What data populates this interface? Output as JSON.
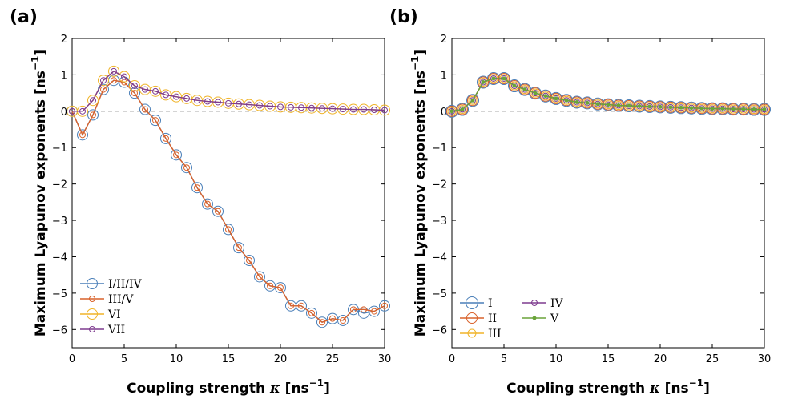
{
  "colors": {
    "blue": "#4a7fb8",
    "orange": "#d9622b",
    "yellow": "#f0b429",
    "purple": "#7e3b8f",
    "green": "#6aa43a",
    "zero_line": "#555555"
  },
  "chart_data": [
    {
      "type": "line",
      "panel_label": "(a)",
      "xlabel": "Coupling strength",
      "xlabel_symbol": "κ",
      "xlabel_unit": "[ns",
      "xlabel_unit_exp": "−1",
      "xlabel_unit_close": "]",
      "ylabel": "Maximum Lyapunov exponents",
      "ylabel_unit": "[ns",
      "ylabel_unit_exp": "−1",
      "ylabel_unit_close": "]",
      "xlim": [
        0,
        30
      ],
      "ylim": [
        -6.5,
        2
      ],
      "xticks": [
        0,
        5,
        10,
        15,
        20,
        25,
        30
      ],
      "yticks": [
        -6,
        -5,
        -4,
        -3,
        -2,
        -1,
        0,
        1,
        2
      ],
      "x": [
        0,
        1,
        2,
        3,
        4,
        5,
        6,
        7,
        8,
        9,
        10,
        11,
        12,
        13,
        14,
        15,
        16,
        17,
        18,
        19,
        20,
        21,
        22,
        23,
        24,
        25,
        26,
        27,
        28,
        29,
        30
      ],
      "series": [
        {
          "name": "I/II/IV",
          "color": "#4a7fb8",
          "marker_size": "large",
          "values": [
            0,
            -0.65,
            -0.1,
            0.6,
            0.85,
            0.8,
            0.5,
            0.05,
            -0.25,
            -0.75,
            -1.2,
            -1.55,
            -2.1,
            -2.55,
            -2.75,
            -3.25,
            -3.75,
            -4.1,
            -4.55,
            -4.8,
            -4.85,
            -5.35,
            -5.35,
            -5.55,
            -5.8,
            -5.7,
            -5.75,
            -5.45,
            -5.55,
            -5.5,
            -5.35
          ]
        },
        {
          "name": "III/V",
          "color": "#d9622b",
          "marker_size": "small",
          "values": [
            0,
            -0.65,
            -0.1,
            0.6,
            0.85,
            0.8,
            0.5,
            0.05,
            -0.25,
            -0.75,
            -1.2,
            -1.55,
            -2.1,
            -2.55,
            -2.75,
            -3.25,
            -3.75,
            -4.1,
            -4.55,
            -4.8,
            -4.85,
            -5.35,
            -5.35,
            -5.55,
            -5.8,
            -5.7,
            -5.75,
            -5.45,
            -5.45,
            -5.5,
            -5.35
          ]
        },
        {
          "name": "VI",
          "color": "#f0b429",
          "marker_size": "large",
          "values": [
            0,
            0,
            0.3,
            0.85,
            1.1,
            0.95,
            0.7,
            0.6,
            0.55,
            0.45,
            0.4,
            0.35,
            0.3,
            0.27,
            0.25,
            0.22,
            0.2,
            0.18,
            0.16,
            0.14,
            0.12,
            0.11,
            0.1,
            0.09,
            0.08,
            0.07,
            0.06,
            0.05,
            0.05,
            0.04,
            0.03
          ]
        },
        {
          "name": "VII",
          "color": "#7e3b8f",
          "marker_size": "small",
          "values": [
            0,
            0,
            0.3,
            0.85,
            1.1,
            0.95,
            0.7,
            0.6,
            0.55,
            0.45,
            0.4,
            0.35,
            0.3,
            0.27,
            0.25,
            0.22,
            0.2,
            0.18,
            0.16,
            0.14,
            0.12,
            0.11,
            0.1,
            0.09,
            0.08,
            0.07,
            0.06,
            0.05,
            0.05,
            0.04,
            0.03
          ]
        }
      ],
      "legend_location": "bottom-left"
    },
    {
      "type": "line",
      "panel_label": "(b)",
      "xlabel": "Coupling strength",
      "xlabel_symbol": "κ",
      "xlabel_unit": "[ns",
      "xlabel_unit_exp": "−1",
      "xlabel_unit_close": "]",
      "ylabel": "Maximum Lyapunov exponents",
      "ylabel_unit": "[ns",
      "ylabel_unit_exp": "−1",
      "ylabel_unit_close": "]",
      "xlim": [
        0,
        30
      ],
      "ylim": [
        -6.5,
        2
      ],
      "xticks": [
        0,
        5,
        10,
        15,
        20,
        25,
        30
      ],
      "yticks": [
        -6,
        -5,
        -4,
        -3,
        -2,
        -1,
        0,
        1,
        2
      ],
      "x": [
        0,
        1,
        2,
        3,
        4,
        5,
        6,
        7,
        8,
        9,
        10,
        11,
        12,
        13,
        14,
        15,
        16,
        17,
        18,
        19,
        20,
        21,
        22,
        23,
        24,
        25,
        26,
        27,
        28,
        29,
        30
      ],
      "series": [
        {
          "name": "I",
          "color": "#4a7fb8",
          "marker_size": "xlarge",
          "values": [
            0,
            0.05,
            0.3,
            0.8,
            0.9,
            0.9,
            0.7,
            0.6,
            0.5,
            0.42,
            0.35,
            0.3,
            0.25,
            0.23,
            0.2,
            0.18,
            0.16,
            0.15,
            0.14,
            0.13,
            0.12,
            0.11,
            0.1,
            0.09,
            0.08,
            0.07,
            0.07,
            0.06,
            0.06,
            0.05,
            0.05
          ]
        },
        {
          "name": "II",
          "color": "#d9622b",
          "marker_size": "large",
          "values": [
            0,
            0.05,
            0.3,
            0.8,
            0.9,
            0.9,
            0.7,
            0.6,
            0.5,
            0.42,
            0.35,
            0.3,
            0.25,
            0.23,
            0.2,
            0.18,
            0.16,
            0.15,
            0.14,
            0.13,
            0.12,
            0.11,
            0.1,
            0.09,
            0.08,
            0.07,
            0.07,
            0.06,
            0.06,
            0.05,
            0.05
          ]
        },
        {
          "name": "III",
          "color": "#f0b429",
          "marker_size": "medium",
          "values": [
            0,
            0.05,
            0.3,
            0.8,
            0.9,
            0.9,
            0.7,
            0.6,
            0.5,
            0.42,
            0.35,
            0.3,
            0.25,
            0.23,
            0.2,
            0.18,
            0.16,
            0.15,
            0.14,
            0.13,
            0.12,
            0.11,
            0.1,
            0.09,
            0.08,
            0.07,
            0.07,
            0.06,
            0.06,
            0.05,
            0.05
          ]
        },
        {
          "name": "IV",
          "color": "#7e3b8f",
          "marker_size": "small",
          "values": [
            0,
            0.05,
            0.3,
            0.8,
            0.9,
            0.9,
            0.7,
            0.6,
            0.5,
            0.42,
            0.35,
            0.3,
            0.25,
            0.23,
            0.2,
            0.18,
            0.16,
            0.15,
            0.14,
            0.13,
            0.12,
            0.11,
            0.1,
            0.09,
            0.08,
            0.07,
            0.07,
            0.06,
            0.06,
            0.05,
            0.05
          ]
        },
        {
          "name": "V",
          "color": "#6aa43a",
          "marker_size": "dot",
          "values": [
            0,
            0.05,
            0.3,
            0.8,
            0.9,
            0.9,
            0.7,
            0.6,
            0.5,
            0.42,
            0.35,
            0.3,
            0.25,
            0.23,
            0.2,
            0.18,
            0.16,
            0.15,
            0.14,
            0.13,
            0.12,
            0.11,
            0.1,
            0.09,
            0.08,
            0.07,
            0.07,
            0.06,
            0.06,
            0.05,
            0.05
          ]
        }
      ],
      "legend_location": "bottom-left"
    }
  ]
}
